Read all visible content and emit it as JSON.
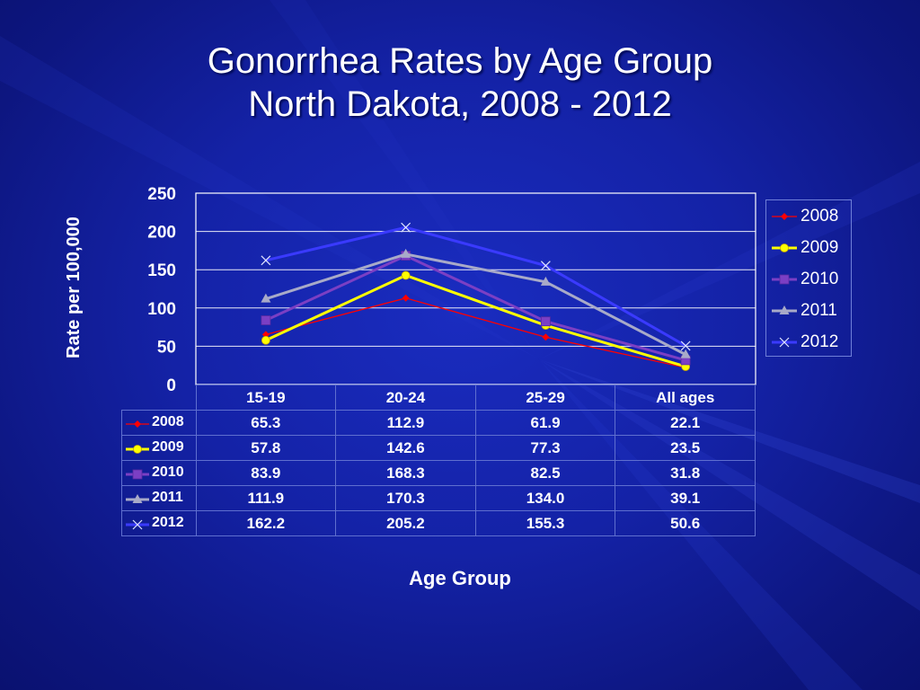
{
  "slide": {
    "title_line1": "Gonorrhea Rates by Age Group",
    "title_line2": "North Dakota, 2008 - 2012"
  },
  "chart_data": {
    "type": "line",
    "title": "Gonorrhea Rates by Age Group North Dakota, 2008 - 2012",
    "xlabel": "Age Group",
    "ylabel": "Rate per 100,000",
    "categories": [
      "15-19",
      "20-24",
      "25-29",
      "All ages"
    ],
    "ylim": [
      0,
      250
    ],
    "yticks": [
      0,
      50,
      100,
      150,
      200,
      250
    ],
    "grid": true,
    "legend_position": "right",
    "data_table": true,
    "series": [
      {
        "name": "2008",
        "values": [
          65.3,
          112.9,
          61.9,
          22.1
        ],
        "display": [
          "65.3",
          "112.9",
          "61.9",
          "22.1"
        ],
        "color": "#ff0000",
        "marker": "diamond"
      },
      {
        "name": "2009",
        "values": [
          57.8,
          142.6,
          77.3,
          23.5
        ],
        "display": [
          "57.8",
          "142.6",
          "77.3",
          "23.5"
        ],
        "color": "#ffff00",
        "marker": "circle"
      },
      {
        "name": "2010",
        "values": [
          83.9,
          168.3,
          82.5,
          31.8
        ],
        "display": [
          "83.9",
          "168.3",
          "82.5",
          "31.8"
        ],
        "color": "#7b3fc4",
        "marker": "square"
      },
      {
        "name": "2011",
        "values": [
          111.9,
          170.3,
          134.0,
          39.1
        ],
        "display": [
          "111.9",
          "170.3",
          "134.0",
          "39.1"
        ],
        "color": "#a8aac8",
        "marker": "triangle"
      },
      {
        "name": "2012",
        "values": [
          162.2,
          205.2,
          155.3,
          50.6
        ],
        "display": [
          "162.2",
          "205.2",
          "155.3",
          "50.6"
        ],
        "color": "#3a3aff",
        "marker": "x"
      }
    ]
  }
}
